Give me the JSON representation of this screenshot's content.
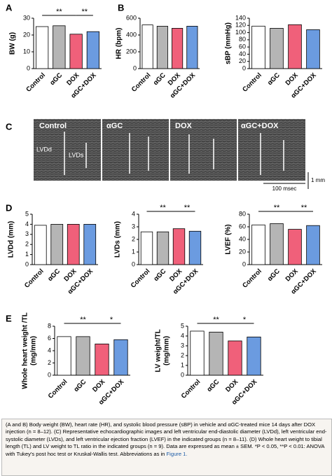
{
  "panels": [
    "A",
    "B",
    "C",
    "D",
    "E"
  ],
  "echo": {
    "groups": [
      "Control",
      "αGC",
      "DOX",
      "αGC+DOX"
    ],
    "lvdd": "LVDd",
    "lvds": "LVDs",
    "time_scale": "100 msec",
    "length_scale": "1 mm"
  },
  "caption": {
    "text": "(A and B) Body weight (BW), heart rate (HR), and systolic blood pressure (sBP) in vehicle and αGC-treated mice 14 days after DOX injection (n = 8–12). (C) Representative echocardiographic images and left ventricular end-diastolic diameter (LVDd), left ventricular end-systolic diameter (LVDs), and left ventricular ejection fraction (LVEF) in the indicated groups (n = 8–11). (D) Whole heart weight to tibial length (TL) and LV weight to TL ratio in the indicated groups (n = 9). Data are expressed as mean ± SEM. *P < 0.05, **P < 0.01: ANOVA with Tukey's post hoc test or Kruskal-Wallis test. Abbreviations as in",
    "link": "Figure 1."
  },
  "chart_data": [
    {
      "type": "bar",
      "ylabel": "BW (g)",
      "categories": [
        "Control",
        "αGC",
        "DOX",
        "αGC+DOX"
      ],
      "values": [
        25,
        25.5,
        20.5,
        22
      ],
      "colors": [
        "#ffffff",
        "#b5b5b5",
        "#f0607a",
        "#6b9be0"
      ],
      "ylim": [
        0,
        30
      ],
      "yticks": [
        0,
        10,
        20,
        30
      ],
      "annotations": [
        {
          "label": "**",
          "between": [
            0,
            2
          ]
        },
        {
          "label": "**",
          "between": [
            2,
            3
          ]
        }
      ]
    },
    {
      "type": "bar",
      "ylabel": "HR (bpm)",
      "categories": [
        "Control",
        "αGC",
        "DOX",
        "αGC+DOX"
      ],
      "values": [
        520,
        505,
        480,
        505
      ],
      "colors": [
        "#ffffff",
        "#b5b5b5",
        "#f0607a",
        "#6b9be0"
      ],
      "ylim": [
        0,
        600
      ],
      "yticks": [
        0,
        200,
        400,
        600
      ],
      "annotations": []
    },
    {
      "type": "bar",
      "ylabel": "sBP (mmHg)",
      "categories": [
        "Control",
        "αGC",
        "DOX",
        "αGC+DOX"
      ],
      "values": [
        118,
        112,
        122,
        108
      ],
      "colors": [
        "#ffffff",
        "#b5b5b5",
        "#f0607a",
        "#6b9be0"
      ],
      "ylim": [
        0,
        140
      ],
      "yticks": [
        0,
        20,
        40,
        60,
        80,
        100,
        120,
        140
      ],
      "annotations": []
    },
    {
      "type": "bar",
      "ylabel": "LVDd (mm)",
      "categories": [
        "Control",
        "αGC",
        "DOX",
        "αGC+DOX"
      ],
      "values": [
        3.9,
        4.0,
        4.0,
        4.0
      ],
      "colors": [
        "#ffffff",
        "#b5b5b5",
        "#f0607a",
        "#6b9be0"
      ],
      "ylim": [
        0,
        5
      ],
      "yticks": [
        0,
        1,
        2,
        3,
        4,
        5
      ],
      "annotations": []
    },
    {
      "type": "bar",
      "ylabel": "LVDs (mm)",
      "categories": [
        "Control",
        "αGC",
        "DOX",
        "αGC+DOX"
      ],
      "values": [
        2.6,
        2.6,
        2.85,
        2.65
      ],
      "colors": [
        "#ffffff",
        "#b5b5b5",
        "#f0607a",
        "#6b9be0"
      ],
      "ylim": [
        0,
        4
      ],
      "yticks": [
        0,
        1,
        2,
        3,
        4
      ],
      "annotations": [
        {
          "label": "**",
          "between": [
            0,
            2
          ]
        },
        {
          "label": "**",
          "between": [
            2,
            3
          ]
        }
      ]
    },
    {
      "type": "bar",
      "ylabel": "LVEF (%)",
      "categories": [
        "Control",
        "αGC",
        "DOX",
        "αGC+DOX"
      ],
      "values": [
        63,
        65,
        56,
        62
      ],
      "colors": [
        "#ffffff",
        "#b5b5b5",
        "#f0607a",
        "#6b9be0"
      ],
      "ylim": [
        0,
        80
      ],
      "yticks": [
        0,
        20,
        40,
        60,
        80
      ],
      "annotations": [
        {
          "label": "**",
          "between": [
            0,
            2
          ]
        },
        {
          "label": "**",
          "between": [
            2,
            3
          ]
        }
      ]
    },
    {
      "type": "bar",
      "ylabel": [
        "Whole heart weight /TL",
        "(mg/mm)"
      ],
      "categories": [
        "Control",
        "αGC",
        "DOX",
        "αGC+DOX"
      ],
      "values": [
        6.3,
        6.3,
        5.1,
        5.8
      ],
      "colors": [
        "#ffffff",
        "#b5b5b5",
        "#f0607a",
        "#6b9be0"
      ],
      "ylim": [
        0,
        8
      ],
      "yticks": [
        0,
        2,
        4,
        6,
        8
      ],
      "annotations": [
        {
          "label": "**",
          "between": [
            0,
            2
          ]
        },
        {
          "label": "*",
          "between": [
            2,
            3
          ]
        }
      ]
    },
    {
      "type": "bar",
      "ylabel": [
        "LV weight/TL",
        "(mg/mm)"
      ],
      "categories": [
        "Control",
        "αGC",
        "DOX",
        "αGC+DOX"
      ],
      "values": [
        4.5,
        4.4,
        3.5,
        3.9
      ],
      "colors": [
        "#ffffff",
        "#b5b5b5",
        "#f0607a",
        "#6b9be0"
      ],
      "ylim": [
        0,
        5
      ],
      "yticks": [
        0,
        1,
        2,
        3,
        4,
        5
      ],
      "annotations": [
        {
          "label": "**",
          "between": [
            0,
            2
          ]
        },
        {
          "label": "*",
          "between": [
            2,
            3
          ]
        }
      ]
    }
  ]
}
